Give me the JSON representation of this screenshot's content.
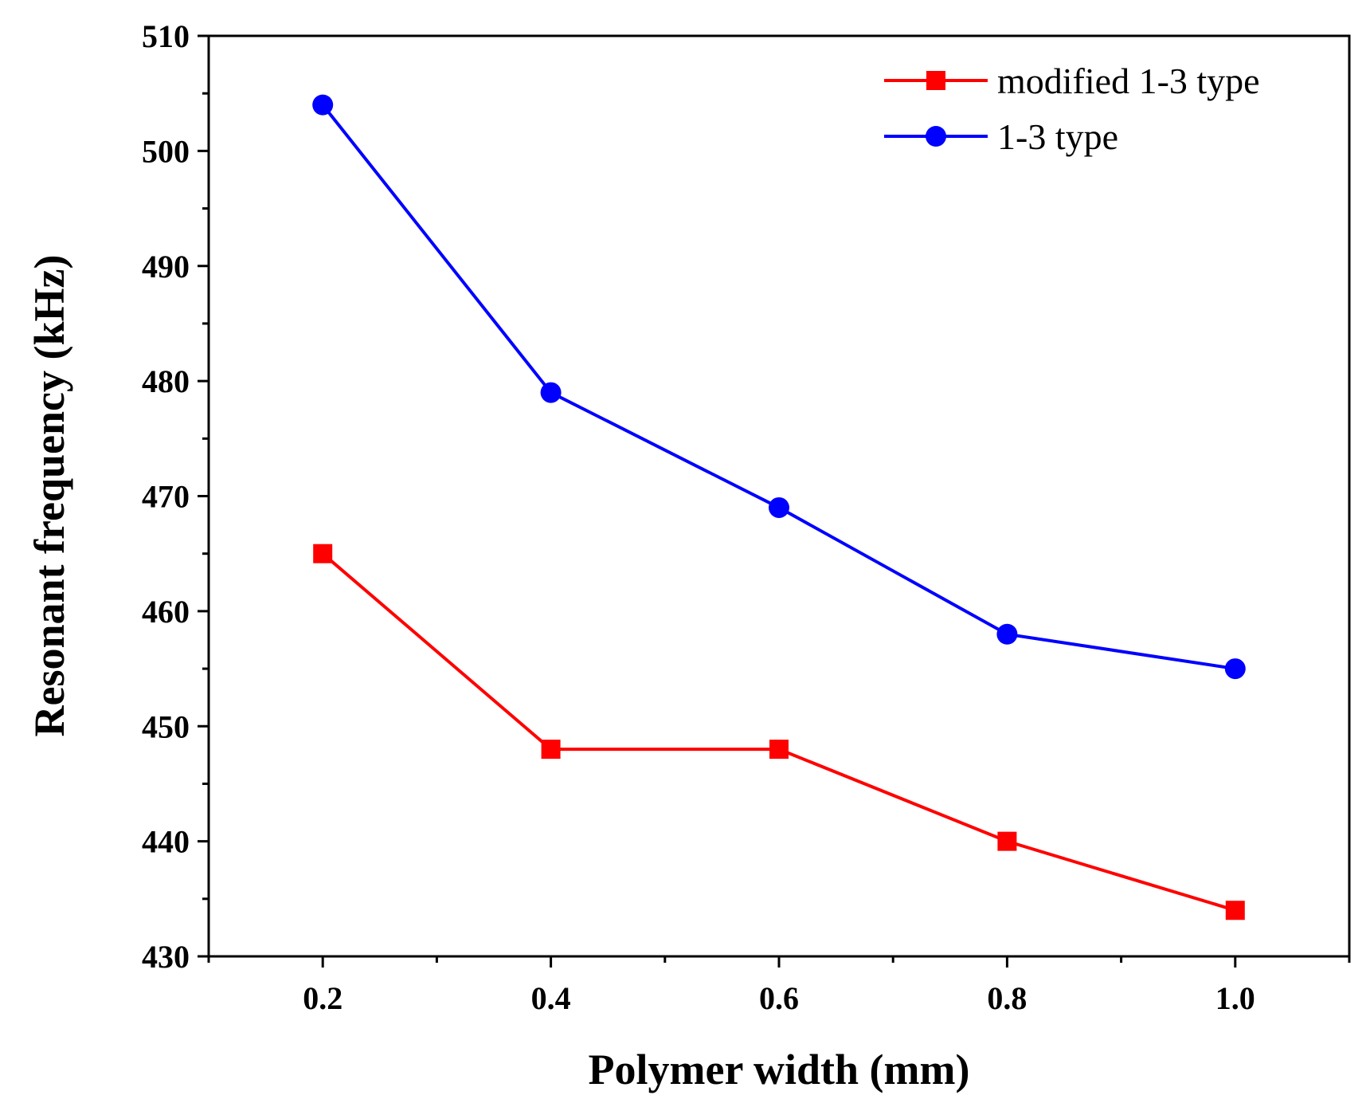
{
  "chart_data": {
    "type": "line",
    "title": "",
    "xlabel": "Polymer width (mm)",
    "ylabel": "Resonant frequency (kHz)",
    "x": [
      0.2,
      0.4,
      0.6,
      0.8,
      1.0
    ],
    "xlim": [
      0.1,
      1.1
    ],
    "ylim": [
      430,
      510
    ],
    "x_ticks": [
      0.2,
      0.4,
      0.6,
      0.8,
      1.0
    ],
    "x_tick_labels": [
      "0.2",
      "0.4",
      "0.6",
      "0.8",
      "1.0"
    ],
    "y_ticks": [
      430,
      440,
      450,
      460,
      470,
      480,
      490,
      500,
      510
    ],
    "y_tick_labels": [
      "430",
      "440",
      "450",
      "460",
      "470",
      "480",
      "490",
      "500",
      "510"
    ],
    "grid": false,
    "legend_position": "top-right",
    "series": [
      {
        "name": "modified 1-3 type",
        "values": [
          465,
          448,
          448,
          440,
          434
        ],
        "color": "#ff0000",
        "marker": "square"
      },
      {
        "name": "1-3 type",
        "values": [
          504,
          479,
          469,
          458,
          455
        ],
        "color": "#0000ff",
        "marker": "circle"
      }
    ]
  }
}
